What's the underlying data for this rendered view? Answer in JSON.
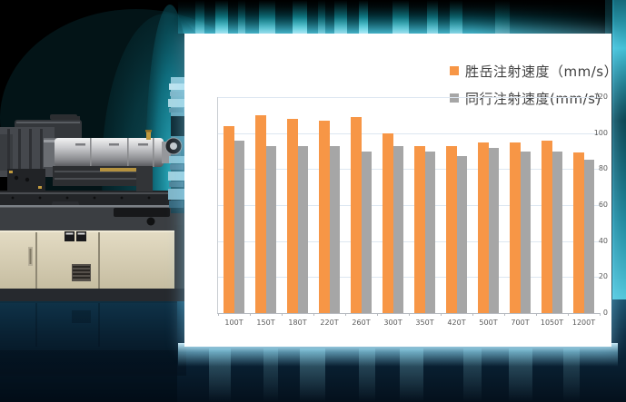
{
  "colors": {
    "accent_orange": "#F79646",
    "accent_gray": "#A6A6A6",
    "gridline": "#dde7f1",
    "axis_label": "#595959",
    "panel_background": "#ffffff",
    "glow_cyan": "#2fc2da"
  },
  "chart_data": {
    "type": "bar",
    "title": "",
    "categories": [
      "100T",
      "150T",
      "180T",
      "220T",
      "260T",
      "300T",
      "350T",
      "420T",
      "500T",
      "700T",
      "1050T",
      "1200T"
    ],
    "series": [
      {
        "name": "胜岳注射速度（mm/s）",
        "color": "#F79646",
        "values": [
          104,
          110,
          108,
          107,
          109,
          100,
          93,
          93,
          95,
          95,
          96,
          89
        ]
      },
      {
        "name": "同行注射速度(mm/s)",
        "color": "#A6A6A6",
        "values": [
          96,
          93,
          93,
          93,
          90,
          93,
          90,
          87,
          92,
          90,
          90,
          85
        ]
      }
    ],
    "ylim": [
      0,
      120
    ],
    "ytick_step": 20,
    "yticks": [
      0,
      20,
      40,
      60,
      80,
      100,
      120
    ],
    "grid": true,
    "legend_position": "top-right",
    "xlabel": "",
    "ylabel": ""
  }
}
